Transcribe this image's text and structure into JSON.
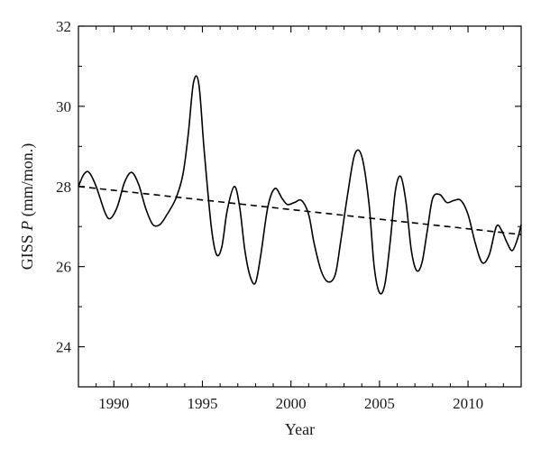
{
  "chart_data": {
    "type": "line",
    "xlabel": "Year",
    "ylabel_prefix": "GISS ",
    "ylabel_var": "P",
    "ylabel_suffix": " (mm/mon.)",
    "xlim": [
      1988,
      2013
    ],
    "ylim": [
      23,
      32
    ],
    "xticks": [
      1990,
      1995,
      2000,
      2005,
      2010
    ],
    "yticks": [
      24,
      26,
      28,
      30,
      32
    ],
    "grid": false,
    "series": [
      {
        "style": "solid",
        "color": "#000000",
        "x": [
          1988.0,
          1988.3,
          1988.6,
          1989.0,
          1989.5,
          1989.8,
          1990.2,
          1990.6,
          1991.0,
          1991.4,
          1991.8,
          1992.2,
          1992.6,
          1993.0,
          1993.5,
          1993.9,
          1994.2,
          1994.5,
          1994.8,
          1995.1,
          1995.5,
          1995.8,
          1996.1,
          1996.4,
          1996.8,
          1997.1,
          1997.4,
          1997.7,
          1998.0,
          1998.3,
          1998.7,
          1999.1,
          1999.5,
          1999.8,
          2000.2,
          2000.6,
          2001.0,
          2001.3,
          2001.7,
          2002.1,
          2002.5,
          2002.8,
          2003.2,
          2003.6,
          2004.0,
          2004.4,
          2004.7,
          2005.0,
          2005.3,
          2005.6,
          2005.9,
          2006.2,
          2006.5,
          2006.8,
          2007.1,
          2007.4,
          2007.7,
          2008.0,
          2008.4,
          2008.8,
          2009.2,
          2009.6,
          2010.0,
          2010.4,
          2010.8,
          2011.2,
          2011.6,
          2011.9,
          2012.2,
          2012.5,
          2012.8,
          2013.0
        ],
        "y": [
          28.0,
          28.3,
          28.35,
          28.0,
          27.35,
          27.2,
          27.5,
          28.1,
          28.35,
          28.05,
          27.45,
          27.05,
          27.05,
          27.3,
          27.7,
          28.3,
          29.3,
          30.6,
          30.55,
          28.9,
          27.0,
          26.3,
          26.5,
          27.4,
          28.0,
          27.5,
          26.4,
          25.75,
          25.6,
          26.3,
          27.5,
          27.95,
          27.7,
          27.55,
          27.6,
          27.65,
          27.3,
          26.6,
          25.9,
          25.62,
          25.8,
          26.6,
          27.8,
          28.8,
          28.75,
          27.6,
          26.0,
          25.35,
          25.55,
          26.6,
          27.9,
          28.25,
          27.6,
          26.4,
          25.9,
          26.1,
          26.9,
          27.7,
          27.8,
          27.6,
          27.65,
          27.65,
          27.3,
          26.6,
          26.1,
          26.3,
          27.0,
          26.9,
          26.6,
          26.4,
          26.7,
          27.05
        ]
      },
      {
        "style": "dashed",
        "color": "#000000",
        "x": [
          1988,
          2013
        ],
        "y": [
          28.0,
          26.8
        ]
      }
    ]
  }
}
